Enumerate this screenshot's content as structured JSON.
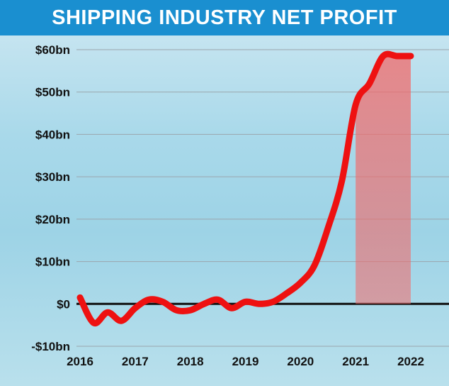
{
  "colors": {
    "title_bg": "#1a8fd0",
    "title_text": "#ffffff",
    "line": "#ee1111",
    "area": "#f26a6a",
    "grid": "#9aa5ac",
    "zero_line": "#111111"
  },
  "chart_data": {
    "type": "area",
    "title": "SHIPPING INDUSTRY NET PROFIT",
    "xlabel": "",
    "ylabel": "",
    "unit": "$bn",
    "ylim": [
      -10,
      60
    ],
    "yticks": [
      60,
      50,
      40,
      30,
      20,
      10,
      0,
      -10
    ],
    "ytick_labels": [
      "$60bn",
      "$50bn",
      "$40bn",
      "$30bn",
      "$20bn",
      "$10bn",
      "$0",
      "-$10bn"
    ],
    "xticks": [
      2016,
      2017,
      2018,
      2019,
      2020,
      2021,
      2022
    ],
    "xtick_labels": [
      "2016",
      "2017",
      "2018",
      "2019",
      "2020",
      "2021",
      "2022"
    ],
    "grid": true,
    "shaded_area_start": 2021.0,
    "series": [
      {
        "name": "Net profit",
        "x": [
          2016.0,
          2016.25,
          2016.5,
          2016.75,
          2017.0,
          2017.25,
          2017.5,
          2017.75,
          2018.0,
          2018.25,
          2018.5,
          2018.75,
          2019.0,
          2019.25,
          2019.5,
          2019.75,
          2020.0,
          2020.25,
          2020.5,
          2020.75,
          2021.0,
          2021.25,
          2021.5,
          2021.75,
          2022.0
        ],
        "values": [
          1.5,
          -4.5,
          -2.0,
          -4.0,
          -1.0,
          1.0,
          0.5,
          -1.5,
          -1.5,
          0.0,
          1.0,
          -1.0,
          0.5,
          0.0,
          0.5,
          2.5,
          5.0,
          9.0,
          18.0,
          29.0,
          47.0,
          52.0,
          58.5,
          58.5,
          58.5
        ]
      }
    ]
  }
}
